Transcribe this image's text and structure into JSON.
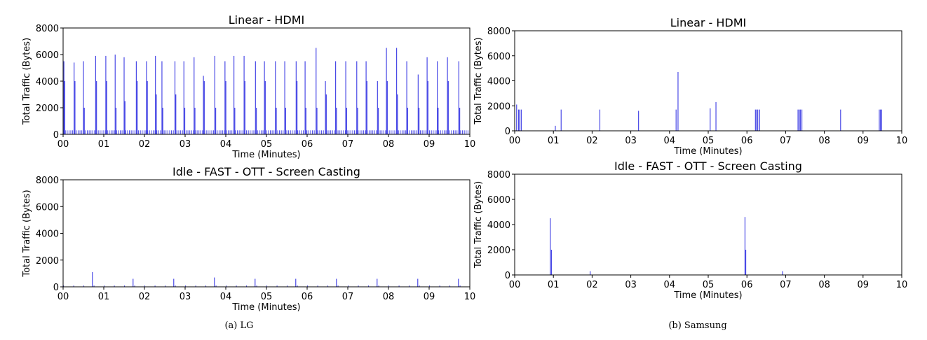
{
  "captions": {
    "left": "(a) LG",
    "right": "(b) Samsung"
  },
  "series_color": "#4a4ae6",
  "chart_data": [
    {
      "type": "bar",
      "title": "Linear - HDMI",
      "xlabel": "Time (Minutes)",
      "ylabel": "Total Traffic (Bytes)",
      "xlim": [
        0,
        10
      ],
      "ylim": [
        0,
        8000
      ],
      "x_ticks": [
        "00",
        "01",
        "02",
        "03",
        "04",
        "05",
        "06",
        "07",
        "08",
        "09",
        "10"
      ],
      "y_ticks": [
        0,
        2000,
        4000,
        6000,
        8000
      ],
      "spikes": {
        "x": [
          0.02,
          0.27,
          0.5,
          0.8,
          1.05,
          1.28,
          1.5,
          1.8,
          2.05,
          2.27,
          2.43,
          2.75,
          2.97,
          3.22,
          3.45,
          3.73,
          3.98,
          4.2,
          4.45,
          4.73,
          4.95,
          5.22,
          5.45,
          5.73,
          5.95,
          6.22,
          6.45,
          6.7,
          6.95,
          7.22,
          7.45,
          7.73,
          7.95,
          8.2,
          8.45,
          8.73,
          8.95,
          9.2,
          9.45,
          9.73
        ],
        "y": [
          5500,
          5400,
          5500,
          5900,
          5900,
          6000,
          5800,
          5500,
          5500,
          5900,
          5500,
          5500,
          5500,
          5800,
          4400,
          5900,
          5500,
          5900,
          5900,
          5500,
          5500,
          5500,
          5500,
          5500,
          5500,
          6500,
          4000,
          5500,
          5500,
          5500,
          5500,
          4000,
          6500,
          6500,
          5500,
          4500,
          5800,
          5500,
          5800,
          5500
        ]
      },
      "mid": {
        "x": [
          0.04,
          0.29,
          0.52,
          0.82,
          1.07,
          1.3,
          1.52,
          1.82,
          2.07,
          2.29,
          2.45,
          2.77,
          2.99,
          3.24,
          3.47,
          3.75,
          4.0,
          4.22,
          4.47,
          4.75,
          4.97,
          5.24,
          5.47,
          5.75,
          5.97,
          6.24,
          6.47,
          6.72,
          6.97,
          7.24,
          7.47,
          7.75,
          7.97,
          8.22,
          8.47,
          8.75,
          8.97,
          9.22,
          9.47,
          9.75
        ],
        "y": [
          4000,
          4000,
          2000,
          4000,
          4000,
          2000,
          2500,
          4000,
          4000,
          3000,
          2000,
          3000,
          2000,
          2000,
          4000,
          2000,
          4000,
          2000,
          4000,
          2000,
          4000,
          2000,
          2000,
          4000,
          2000,
          2000,
          3000,
          2000,
          2000,
          2000,
          4000,
          2000,
          4000,
          3000,
          2000,
          2000,
          4000,
          2000,
          4000,
          2000
        ]
      },
      "base": {
        "step": 0.045,
        "y": 300
      }
    },
    {
      "type": "bar",
      "title": "Linear - HDMI",
      "xlabel": "Time (Minutes)",
      "ylabel": "Total Traffic (Bytes)",
      "xlim": [
        0,
        10
      ],
      "ylim": [
        0,
        8000
      ],
      "x_ticks": [
        "00",
        "01",
        "02",
        "03",
        "04",
        "05",
        "06",
        "07",
        "08",
        "09",
        "10"
      ],
      "y_ticks": [
        0,
        2000,
        4000,
        6000,
        8000
      ],
      "spikes": {
        "x": [
          0.05,
          0.1,
          0.13,
          0.17,
          1.05,
          1.2,
          2.2,
          3.2,
          4.17,
          4.22,
          5.05,
          5.2,
          6.22,
          6.25,
          6.28,
          6.33,
          7.32,
          7.35,
          7.38,
          7.42,
          8.42,
          9.42,
          9.45,
          9.48
        ],
        "y": [
          2100,
          1700,
          1700,
          1700,
          400,
          1700,
          1700,
          1600,
          1700,
          4700,
          1800,
          2300,
          1700,
          1700,
          1700,
          1700,
          1700,
          1700,
          1700,
          1700,
          1700,
          1700,
          1700,
          1700
        ]
      },
      "mid": {
        "x": [],
        "y": []
      },
      "base": {
        "step": 0.5,
        "y": 20
      }
    },
    {
      "type": "bar",
      "title": "Idle - FAST - OTT - Screen Casting",
      "xlabel": "Time (Minutes)",
      "ylabel": "Total Traffic (Bytes)",
      "xlim": [
        0,
        10
      ],
      "ylim": [
        0,
        8000
      ],
      "x_ticks": [
        "00",
        "01",
        "02",
        "03",
        "04",
        "05",
        "06",
        "07",
        "08",
        "09",
        "10"
      ],
      "y_ticks": [
        0,
        2000,
        4000,
        6000,
        8000
      ],
      "spikes": {
        "x": [
          0.72,
          1.72,
          2.72,
          3.72,
          4.72,
          5.72,
          6.72,
          7.72,
          8.72,
          9.72
        ],
        "y": [
          1100,
          600,
          600,
          700,
          600,
          600,
          600,
          600,
          600,
          600
        ]
      },
      "mid": {
        "x": [],
        "y": []
      },
      "base": {
        "step": 0.25,
        "y": 100
      }
    },
    {
      "type": "bar",
      "title": "Idle - FAST - OTT - Screen Casting",
      "xlabel": "Time (Minutes)",
      "ylabel": "Total Traffic (Bytes)",
      "xlim": [
        0,
        10
      ],
      "ylim": [
        0,
        8000
      ],
      "x_ticks": [
        "00",
        "01",
        "02",
        "03",
        "04",
        "05",
        "06",
        "07",
        "08",
        "09",
        "10"
      ],
      "y_ticks": [
        0,
        2000,
        4000,
        6000,
        8000
      ],
      "spikes": {
        "x": [
          0.92,
          0.95,
          1.95,
          5.95,
          5.97,
          6.92
        ],
        "y": [
          4500,
          2000,
          300,
          4600,
          2000,
          300
        ]
      },
      "mid": {
        "x": [],
        "y": []
      },
      "base": {
        "step": 0.5,
        "y": 20
      }
    }
  ]
}
